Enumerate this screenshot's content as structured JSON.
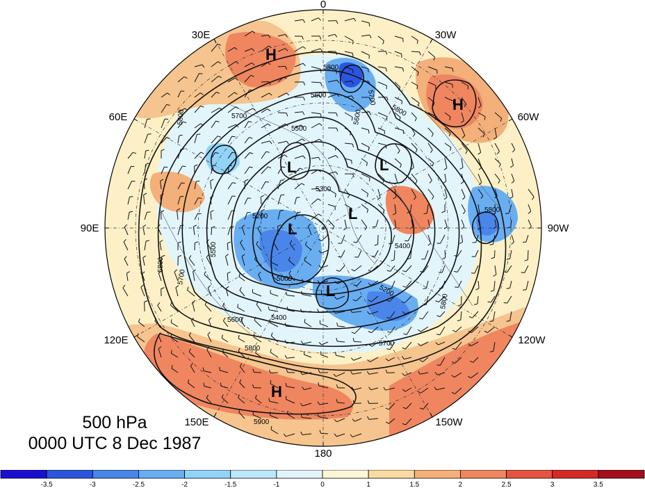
{
  "map": {
    "projection": "polar stereographic, north pole",
    "longitude_labels": {
      "top": "0",
      "top_left": "30E",
      "top_right": "30W",
      "upper_left": "60E",
      "upper_right": "60W",
      "left": "90E",
      "right": "90W",
      "lower_left": "120E",
      "lower_right": "120W",
      "bottom_left": "150E",
      "bottom_right": "150W",
      "bottom": "180"
    },
    "contour_labels": [
      "5800",
      "5700",
      "5600",
      "5500",
      "5600",
      "5700",
      "5800",
      "5300",
      "5200",
      "5500",
      "5000",
      "5800",
      "5700",
      "5400",
      "5200",
      "5600",
      "5700",
      "5800",
      "5400",
      "5800",
      "5900",
      "5800",
      "5800"
    ],
    "centers": {
      "h1": "H",
      "h2": "H",
      "h3": "H",
      "l1": "L",
      "l2": "L",
      "l3": "L",
      "l4": "L",
      "l5": "L"
    },
    "contour_field": "500 hPa geopotential height (m)",
    "shading_field": "standardized anomaly"
  },
  "level": "500 hPa",
  "datetime": "0000 UTC 8 Dec 1987",
  "colorbar": {
    "ticks": [
      "-3.5",
      "-3",
      "-2.5",
      "-2",
      "-1.5",
      "-1",
      "0",
      "1",
      "1.5",
      "2",
      "2.5",
      "3",
      "3.5"
    ],
    "colors": [
      "#1a0fd0",
      "#2a55e0",
      "#4a86ea",
      "#6aaef2",
      "#92d3f8",
      "#bde8fa",
      "#e2f5fb",
      "#fdf6d6",
      "#f9dba2",
      "#f4b07a",
      "#ef8660",
      "#e8533f",
      "#d42a26",
      "#a40f1e"
    ]
  }
}
